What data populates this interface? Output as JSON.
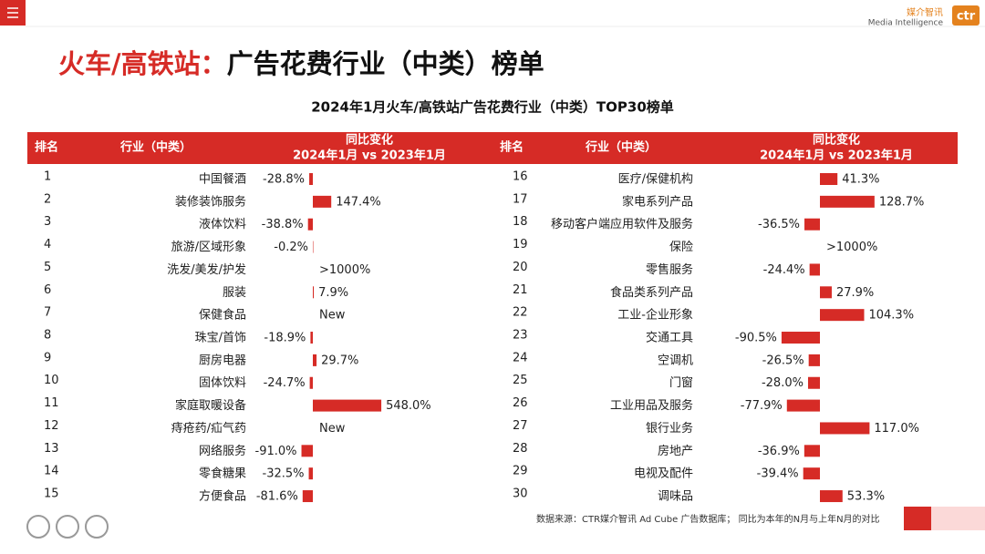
{
  "brand": {
    "cn": "媒介智讯",
    "en": "Media Intelligence",
    "logo": "ctr"
  },
  "title": {
    "highlight": "火车/高铁站：",
    "rest": "广告花费行业（中类）榜单"
  },
  "subtitle": "2024年1月火车/高铁站广告花费行业（中类）TOP30榜单",
  "table": {
    "columns": [
      "排名",
      "行业（中类）",
      [
        "同比变化",
        "2024年1月 vs 2023年1月"
      ]
    ],
    "rows": [
      {
        "rank": 1,
        "industry": "中国餐酒",
        "change": -28.8,
        "change_label": "-28.8%"
      },
      {
        "rank": 2,
        "industry": "装修装饰服务",
        "change": 147.4,
        "change_label": "147.4%"
      },
      {
        "rank": 3,
        "industry": "液体饮料",
        "change": -38.8,
        "change_label": "-38.8%"
      },
      {
        "rank": 4,
        "industry": "旅游/区域形象",
        "change": -0.2,
        "change_label": "-0.2%"
      },
      {
        "rank": 5,
        "industry": "洗发/美发/护发",
        "change": null,
        "change_label": ">1000%"
      },
      {
        "rank": 6,
        "industry": "服装",
        "change": 7.9,
        "change_label": "7.9%"
      },
      {
        "rank": 7,
        "industry": "保健食品",
        "change": null,
        "change_label": "New"
      },
      {
        "rank": 8,
        "industry": "珠宝/首饰",
        "change": -18.9,
        "change_label": "-18.9%"
      },
      {
        "rank": 9,
        "industry": "厨房电器",
        "change": 29.7,
        "change_label": "29.7%"
      },
      {
        "rank": 10,
        "industry": "固体饮料",
        "change": -24.7,
        "change_label": "-24.7%"
      },
      {
        "rank": 11,
        "industry": "家庭取暖设备",
        "change": 548.0,
        "change_label": "548.0%"
      },
      {
        "rank": 12,
        "industry": "痔疮药/疝气药",
        "change": null,
        "change_label": "New"
      },
      {
        "rank": 13,
        "industry": "网络服务",
        "change": -91.0,
        "change_label": "-91.0%"
      },
      {
        "rank": 14,
        "industry": "零食糖果",
        "change": -32.5,
        "change_label": "-32.5%"
      },
      {
        "rank": 15,
        "industry": "方便食品",
        "change": -81.6,
        "change_label": "-81.6%"
      },
      {
        "rank": 16,
        "industry": "医疗/保健机构",
        "change": 41.3,
        "change_label": "41.3%"
      },
      {
        "rank": 17,
        "industry": "家电系列产品",
        "change": 128.7,
        "change_label": "128.7%"
      },
      {
        "rank": 18,
        "industry": "移动客户端应用软件及服务",
        "change": -36.5,
        "change_label": "-36.5%"
      },
      {
        "rank": 19,
        "industry": "保险",
        "change": null,
        "change_label": ">1000%"
      },
      {
        "rank": 20,
        "industry": "零售服务",
        "change": -24.4,
        "change_label": "-24.4%"
      },
      {
        "rank": 21,
        "industry": "食品类系列产品",
        "change": 27.9,
        "change_label": "27.9%"
      },
      {
        "rank": 22,
        "industry": "工业-企业形象",
        "change": 104.3,
        "change_label": "104.3%"
      },
      {
        "rank": 23,
        "industry": "交通工具",
        "change": -90.5,
        "change_label": "-90.5%"
      },
      {
        "rank": 24,
        "industry": "空调机",
        "change": -26.5,
        "change_label": "-26.5%"
      },
      {
        "rank": 25,
        "industry": "门窗",
        "change": -28.0,
        "change_label": "-28.0%"
      },
      {
        "rank": 26,
        "industry": "工业用品及服务",
        "change": -77.9,
        "change_label": "-77.9%"
      },
      {
        "rank": 27,
        "industry": "银行业务",
        "change": 117.0,
        "change_label": "117.0%"
      },
      {
        "rank": 28,
        "industry": "房地产",
        "change": -36.9,
        "change_label": "-36.9%"
      },
      {
        "rank": 29,
        "industry": "电视及配件",
        "change": -39.4,
        "change_label": "-39.4%"
      },
      {
        "rank": 30,
        "industry": "调味品",
        "change": 53.3,
        "change_label": "53.3%"
      }
    ]
  },
  "footer": {
    "source": "数据来源：CTR媒介智讯 Ad Cube 广告数据库； 同比为本年的N月与上年N月的对比"
  }
}
